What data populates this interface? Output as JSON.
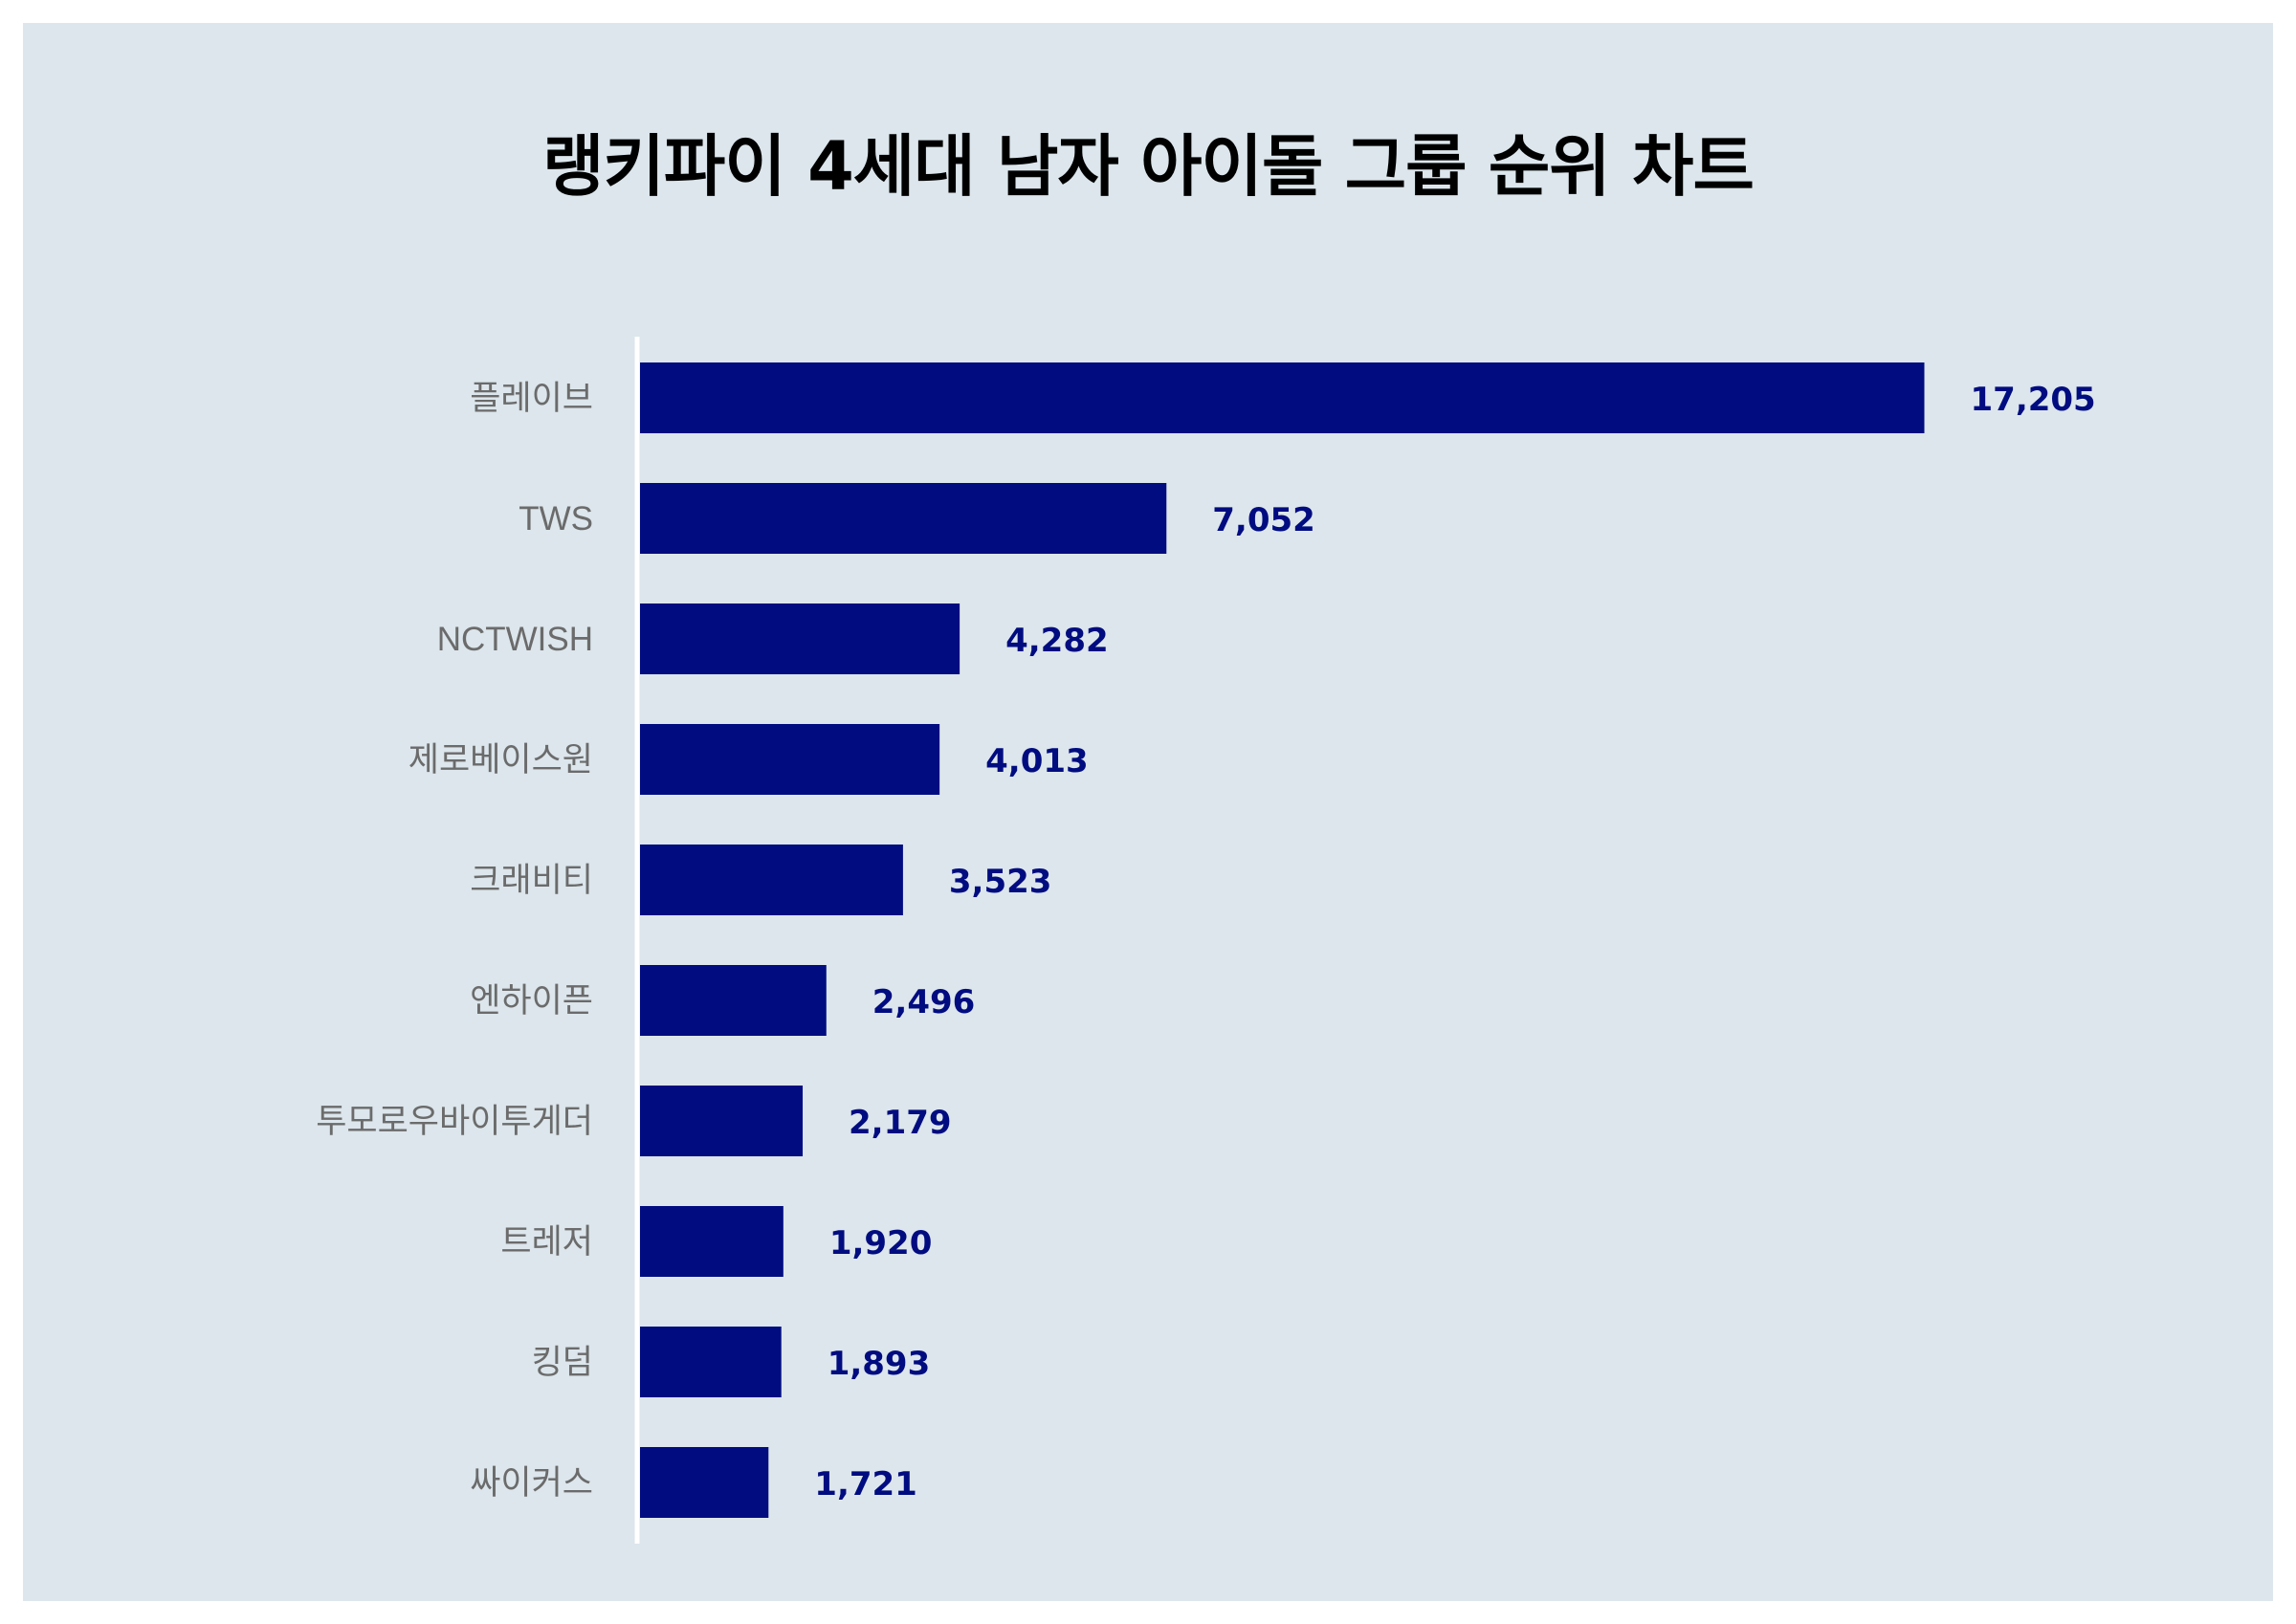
{
  "chart_data": {
    "type": "bar",
    "orientation": "horizontal",
    "title": "랭키파이 4세대 남자 아이돌 그룹 순위 차트",
    "categories": [
      "플레이브",
      "TWS",
      "NCTWISH",
      "제로베이스원",
      "크래비티",
      "엔하이픈",
      "투모로우바이투게더",
      "트레저",
      "킹덤",
      "싸이커스"
    ],
    "values": [
      17205,
      7052,
      4282,
      4013,
      3523,
      2496,
      2179,
      1920,
      1893,
      1721
    ],
    "value_labels": [
      "17,205",
      "7,052",
      "4,282",
      "4,013",
      "3,523",
      "2,496",
      "2,179",
      "1,920",
      "1,893",
      "1,721"
    ],
    "xlim": [
      0,
      20000
    ],
    "grid": false,
    "legend": "none",
    "colors": {
      "bar": "#000c80",
      "value_label": "#000c80",
      "axis_line": "#ffffff",
      "background": "#dce6ec"
    }
  }
}
